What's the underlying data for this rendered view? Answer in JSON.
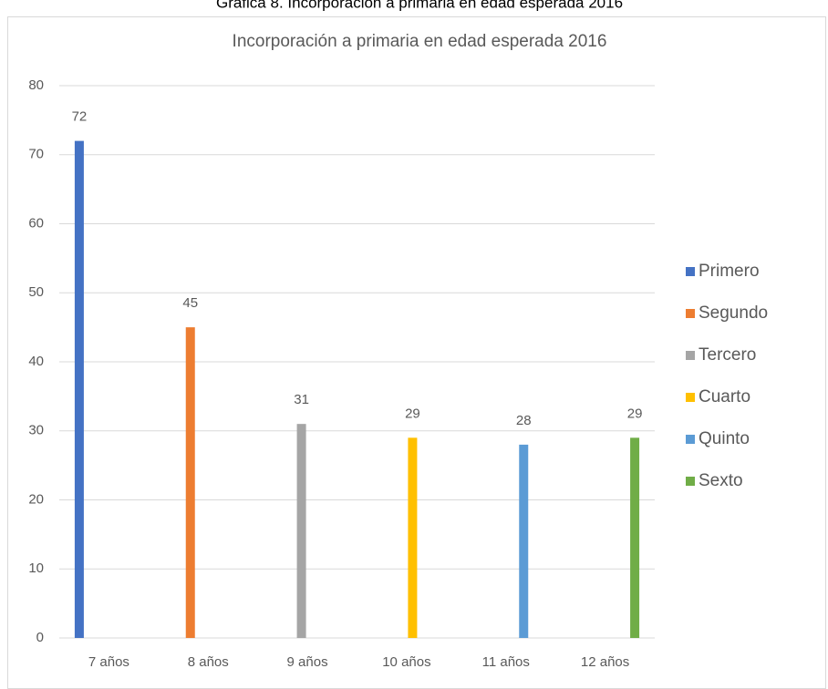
{
  "chart_data": {
    "type": "bar",
    "caption": "Gráfica 8. Incorporación a primaria en edad esperada 2016",
    "title": "Incorporación  a  primaria  en  edad  esperada  2016",
    "categories": [
      "7 años",
      "8 años",
      "9 años",
      "10 años",
      "11 años",
      "12 años"
    ],
    "series": [
      {
        "name": "Primero",
        "color": "#4472c4",
        "values": [
          72,
          null,
          null,
          null,
          null,
          null
        ]
      },
      {
        "name": "Segundo",
        "color": "#ed7d31",
        "values": [
          null,
          45,
          null,
          null,
          null,
          null
        ]
      },
      {
        "name": "Tercero",
        "color": "#a5a5a5",
        "values": [
          null,
          null,
          31,
          null,
          null,
          null
        ]
      },
      {
        "name": "Cuarto",
        "color": "#ffc000",
        "values": [
          null,
          null,
          null,
          29,
          null,
          null
        ]
      },
      {
        "name": "Quinto",
        "color": "#5b9bd5",
        "values": [
          null,
          null,
          null,
          null,
          28,
          null
        ]
      },
      {
        "name": "Sexto",
        "color": "#70ad47",
        "values": [
          null,
          null,
          null,
          null,
          null,
          29
        ]
      }
    ],
    "ylim": [
      0,
      80
    ],
    "yticks": [
      0,
      10,
      20,
      30,
      40,
      50,
      60,
      70,
      80
    ],
    "grid": true,
    "legend": "right"
  }
}
